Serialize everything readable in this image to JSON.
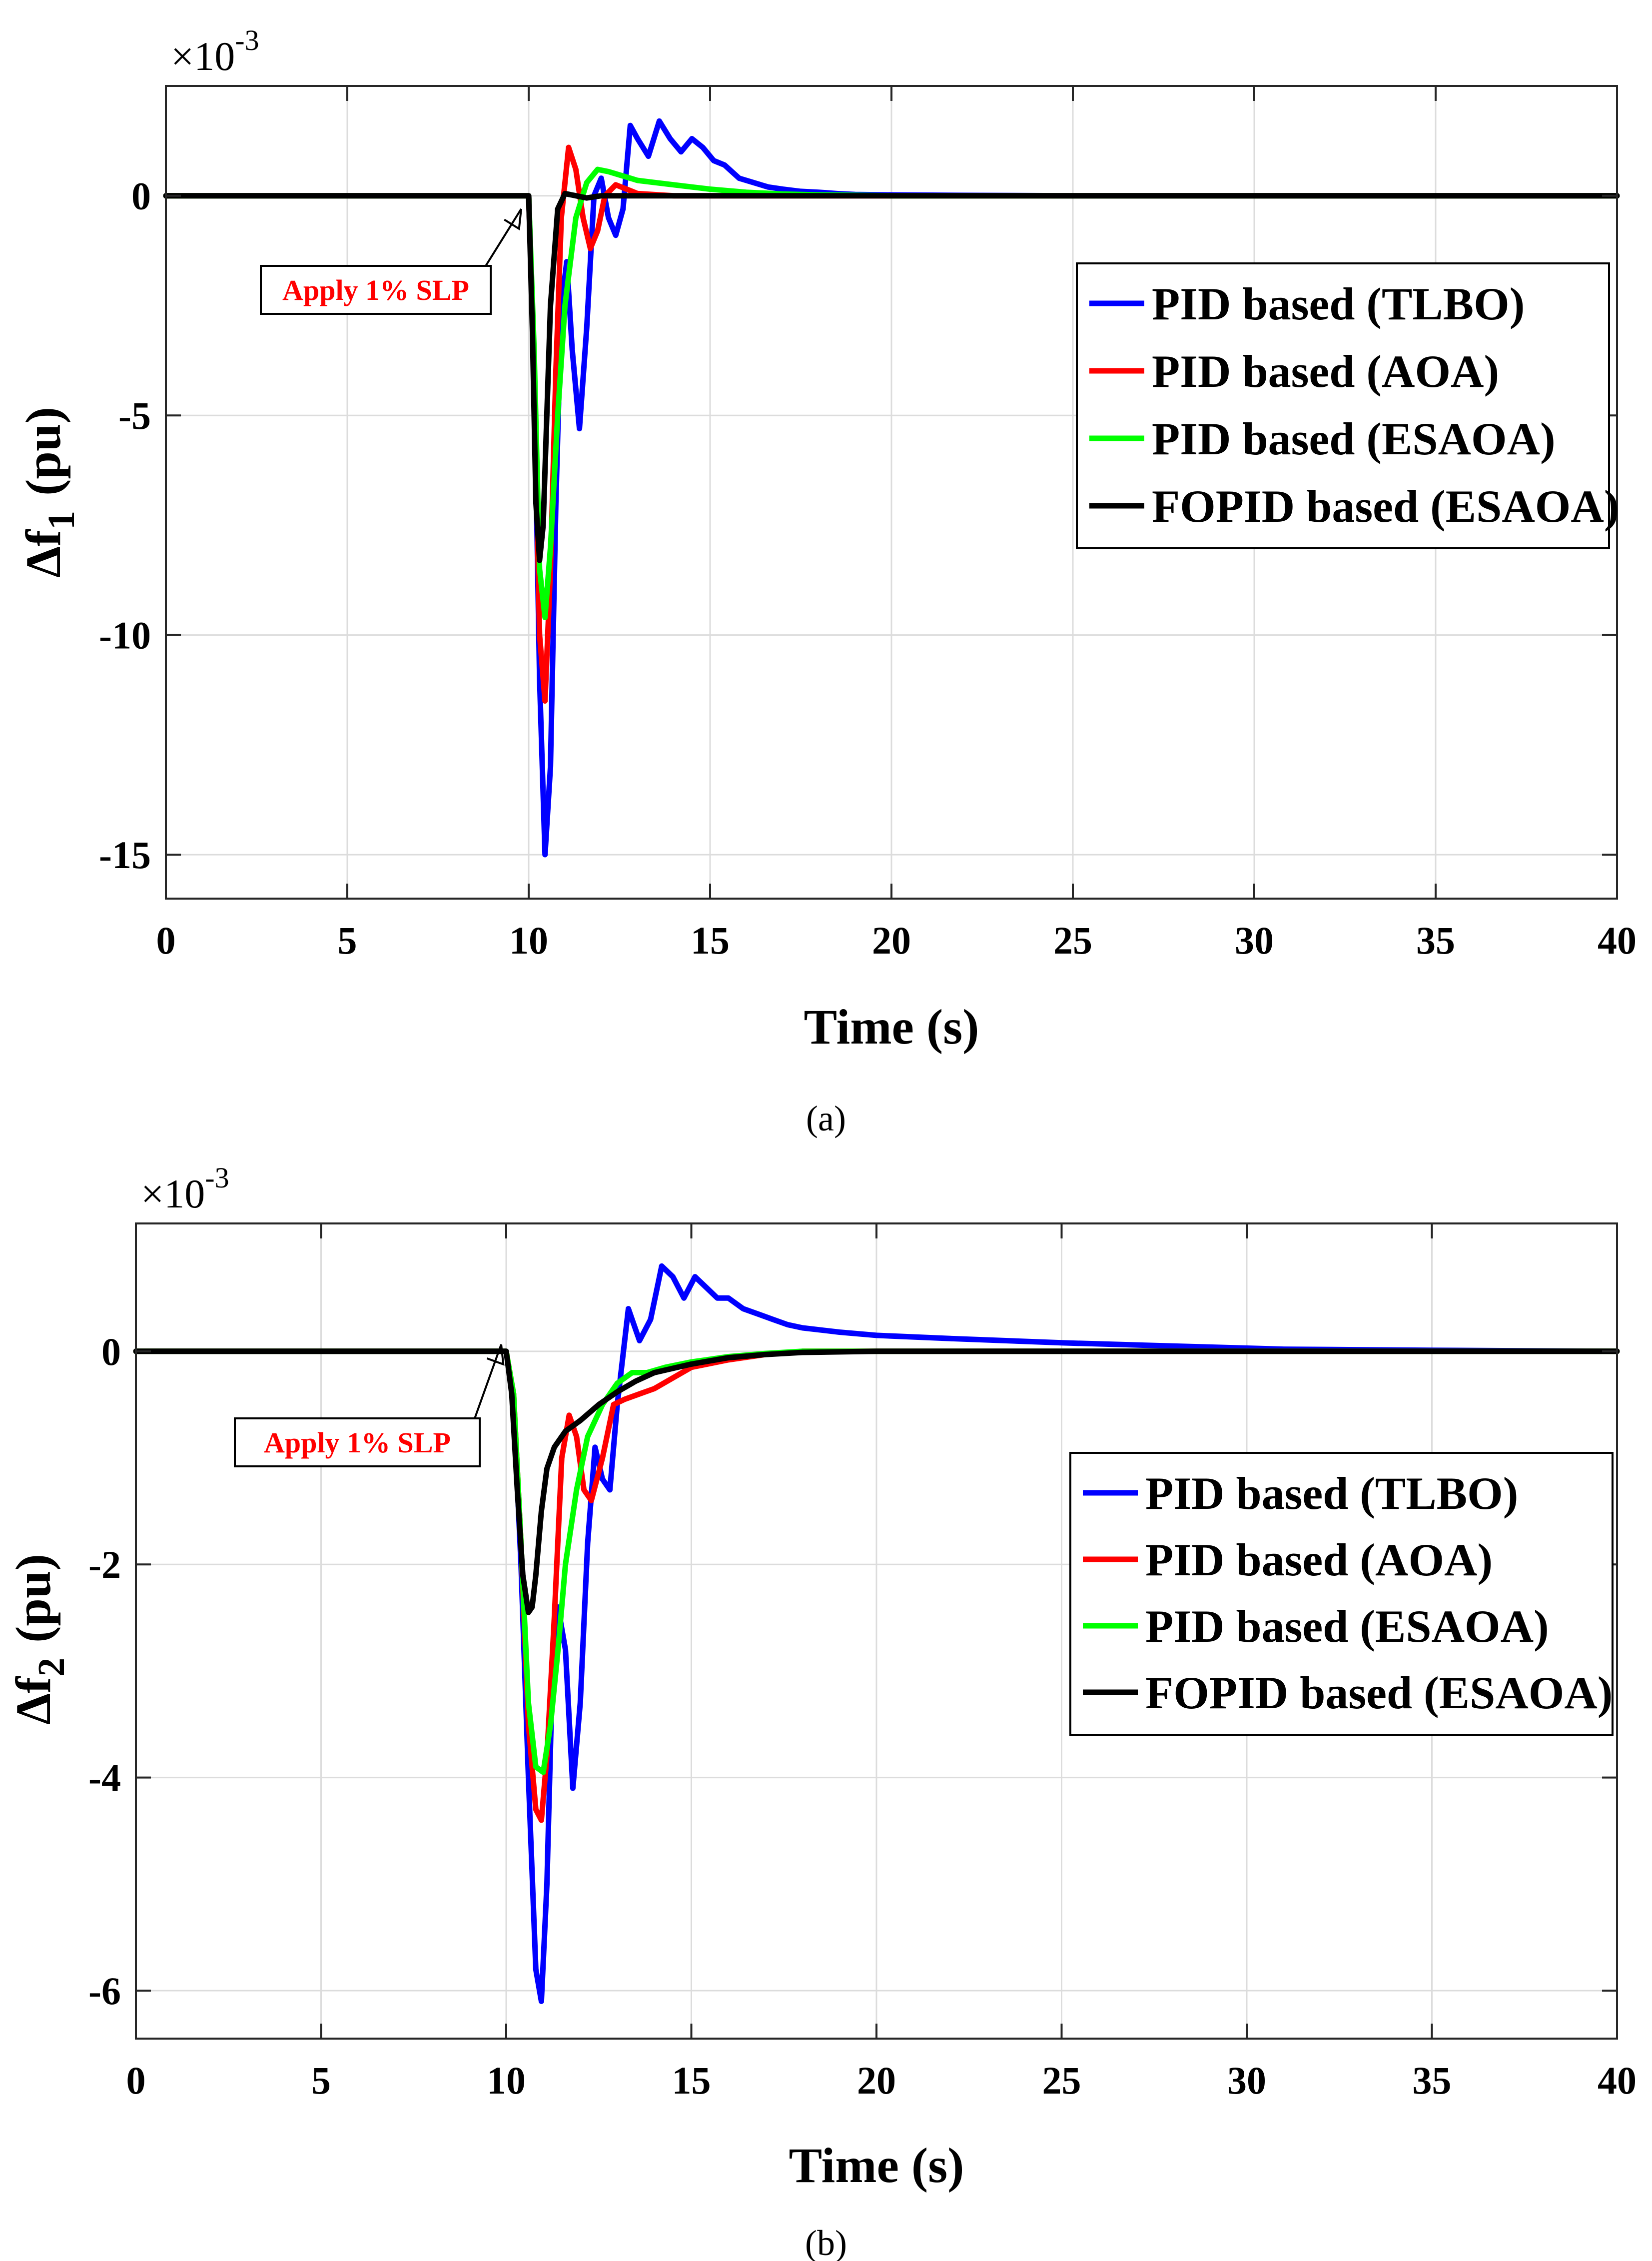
{
  "chart_data": [
    {
      "type": "line",
      "panel_label": "(a)",
      "xlabel": "Time (s)",
      "ylabel_main": "Δf",
      "ylabel_sub": "1",
      "ylabel_unit": "(pu)",
      "y_multiplier_base": "×10",
      "y_multiplier_exp": "-3",
      "xlim": [
        0,
        40
      ],
      "ylim": [
        -16,
        2.5
      ],
      "xticks": [
        0,
        5,
        10,
        15,
        20,
        25,
        30,
        35,
        40
      ],
      "yticks": [
        0,
        -5,
        -10,
        -15
      ],
      "grid": true,
      "legend_position": "upper-right",
      "annotation": {
        "text": "Apply 1% SLP",
        "x": 10,
        "y": 0
      },
      "series": [
        {
          "name": "PID based (TLBO)",
          "color": "#0000ff",
          "x": [
            0,
            10.0,
            10.15,
            10.3,
            10.45,
            10.6,
            10.75,
            10.9,
            11.05,
            11.2,
            11.4,
            11.6,
            11.8,
            12.0,
            12.2,
            12.4,
            12.6,
            12.8,
            13.0,
            13.3,
            13.6,
            13.9,
            14.2,
            14.5,
            14.8,
            15.1,
            15.4,
            15.8,
            16.2,
            16.6,
            17.0,
            17.5,
            18.0,
            18.5,
            19.0,
            20.0,
            22.0,
            25.0,
            30.0,
            40.0
          ],
          "y": [
            0,
            0,
            -4.0,
            -11.0,
            -15.0,
            -13.0,
            -7.0,
            -2.5,
            -1.5,
            -3.5,
            -5.3,
            -3.0,
            0.0,
            0.4,
            -0.5,
            -0.9,
            -0.3,
            1.6,
            1.3,
            0.9,
            1.7,
            1.3,
            1.0,
            1.3,
            1.1,
            0.8,
            0.7,
            0.4,
            0.3,
            0.2,
            0.15,
            0.1,
            0.08,
            0.05,
            0.03,
            0.02,
            0.01,
            0.0,
            0.0,
            0
          ]
        },
        {
          "name": "PID based (AOA)",
          "color": "#ff0000",
          "x": [
            0,
            10.0,
            10.15,
            10.3,
            10.45,
            10.6,
            10.75,
            10.9,
            11.1,
            11.3,
            11.5,
            11.7,
            11.9,
            12.1,
            12.4,
            12.7,
            13.0,
            14.0,
            15.0,
            40.0
          ],
          "y": [
            0,
            0,
            -4.0,
            -10.0,
            -11.5,
            -8.5,
            -4.0,
            -0.5,
            1.1,
            0.6,
            -0.5,
            -1.2,
            -0.8,
            0.0,
            0.25,
            0.15,
            0.05,
            0.0,
            0.0,
            0
          ]
        },
        {
          "name": "PID based (ESAOA)",
          "color": "#00ff00",
          "x": [
            0,
            10.0,
            10.15,
            10.3,
            10.45,
            10.6,
            10.8,
            11.0,
            11.3,
            11.6,
            11.9,
            12.2,
            12.6,
            13.0,
            13.5,
            14.0,
            15.0,
            16.0,
            17.0,
            18.0,
            20.0,
            40.0
          ],
          "y": [
            0,
            0,
            -3.5,
            -8.5,
            -9.6,
            -8.0,
            -5.0,
            -2.5,
            -0.5,
            0.3,
            0.6,
            0.55,
            0.45,
            0.35,
            0.3,
            0.25,
            0.15,
            0.08,
            0.04,
            0.02,
            0.0,
            0
          ]
        },
        {
          "name": "FOPID based (ESAOA)",
          "color": "#000000",
          "x": [
            0,
            10.0,
            10.1,
            10.2,
            10.3,
            10.4,
            10.5,
            10.6,
            10.8,
            11.0,
            11.3,
            11.6,
            12.0,
            13.0,
            40.0
          ],
          "y": [
            0,
            0,
            -3.0,
            -7.0,
            -8.3,
            -7.5,
            -5.0,
            -2.5,
            -0.3,
            0.05,
            0.0,
            -0.05,
            0.0,
            0.0,
            0
          ]
        }
      ]
    },
    {
      "type": "line",
      "panel_label": "(b)",
      "xlabel": "Time (s)",
      "ylabel_main": "Δf",
      "ylabel_sub": "2",
      "ylabel_unit": "(pu)",
      "y_multiplier_base": "×10",
      "y_multiplier_exp": "-3",
      "xlim": [
        0,
        40
      ],
      "ylim": [
        -6.45,
        1.2
      ],
      "xticks": [
        0,
        5,
        10,
        15,
        20,
        25,
        30,
        35,
        40
      ],
      "yticks": [
        0,
        -2,
        -4,
        -6
      ],
      "grid": true,
      "legend_position": "middle-right",
      "annotation": {
        "text": "Apply 1% SLP",
        "x": 10,
        "y": 0
      },
      "series": [
        {
          "name": "PID based (TLBO)",
          "color": "#0000ff",
          "x": [
            0,
            10.0,
            10.2,
            10.4,
            10.6,
            10.8,
            10.95,
            11.1,
            11.25,
            11.4,
            11.6,
            11.8,
            12.0,
            12.2,
            12.4,
            12.6,
            12.8,
            13.0,
            13.3,
            13.6,
            13.9,
            14.2,
            14.5,
            14.8,
            15.1,
            15.4,
            15.7,
            16.0,
            16.4,
            16.8,
            17.2,
            17.6,
            18.0,
            19.0,
            20.0,
            22.0,
            25.0,
            28.0,
            31.0,
            35.0,
            40.0
          ],
          "y": [
            0,
            0,
            -0.5,
            -2.0,
            -4.0,
            -5.8,
            -6.1,
            -5.0,
            -3.0,
            -2.4,
            -2.8,
            -4.1,
            -3.3,
            -1.8,
            -0.9,
            -1.2,
            -1.3,
            -0.5,
            0.4,
            0.1,
            0.3,
            0.8,
            0.7,
            0.5,
            0.7,
            0.6,
            0.5,
            0.5,
            0.4,
            0.35,
            0.3,
            0.25,
            0.22,
            0.18,
            0.15,
            0.12,
            0.08,
            0.05,
            0.02,
            0.01,
            0
          ]
        },
        {
          "name": "PID based (AOA)",
          "color": "#ff0000",
          "x": [
            0,
            10.0,
            10.2,
            10.4,
            10.6,
            10.8,
            10.95,
            11.1,
            11.3,
            11.5,
            11.7,
            11.9,
            12.1,
            12.3,
            12.6,
            12.9,
            13.2,
            13.6,
            14.0,
            14.5,
            15.0,
            16.0,
            17.0,
            18.0,
            20.0,
            40.0
          ],
          "y": [
            0,
            0,
            -0.4,
            -1.8,
            -3.5,
            -4.3,
            -4.4,
            -3.8,
            -2.5,
            -1.0,
            -0.6,
            -0.8,
            -1.3,
            -1.4,
            -1.0,
            -0.5,
            -0.45,
            -0.4,
            -0.35,
            -0.25,
            -0.15,
            -0.08,
            -0.03,
            0.0,
            0.0,
            0
          ]
        },
        {
          "name": "PID based (ESAOA)",
          "color": "#00ff00",
          "x": [
            0,
            10.0,
            10.2,
            10.4,
            10.6,
            10.8,
            11.0,
            11.2,
            11.4,
            11.6,
            11.9,
            12.2,
            12.6,
            13.0,
            13.4,
            13.8,
            14.3,
            15.0,
            16.0,
            17.0,
            18.0,
            20.0,
            40.0
          ],
          "y": [
            0,
            0,
            -0.4,
            -1.8,
            -3.3,
            -3.9,
            -3.95,
            -3.5,
            -2.8,
            -2.0,
            -1.3,
            -0.8,
            -0.5,
            -0.3,
            -0.2,
            -0.2,
            -0.15,
            -0.1,
            -0.05,
            -0.02,
            0.0,
            0.0,
            0
          ]
        },
        {
          "name": "FOPID based (ESAOA)",
          "color": "#000000",
          "x": [
            0,
            10.0,
            10.15,
            10.3,
            10.45,
            10.6,
            10.7,
            10.8,
            10.95,
            11.1,
            11.3,
            11.6,
            12.0,
            12.5,
            13.0,
            13.5,
            14.0,
            15.0,
            16.0,
            17.0,
            18.0,
            20.0,
            40.0
          ],
          "y": [
            0,
            0,
            -0.4,
            -1.3,
            -2.1,
            -2.45,
            -2.4,
            -2.1,
            -1.5,
            -1.1,
            -0.9,
            -0.75,
            -0.65,
            -0.5,
            -0.38,
            -0.28,
            -0.2,
            -0.12,
            -0.06,
            -0.03,
            -0.01,
            0.0,
            0
          ]
        }
      ]
    }
  ]
}
